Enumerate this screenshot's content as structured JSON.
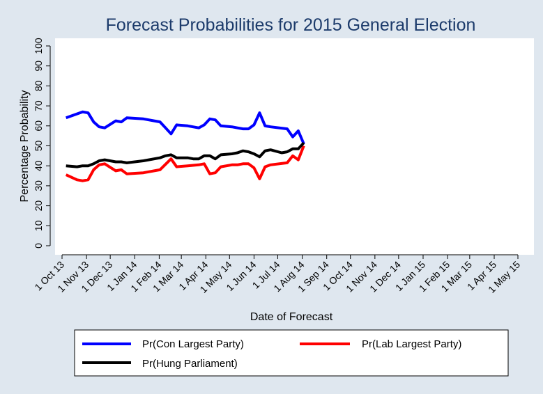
{
  "chart_data": {
    "type": "line",
    "title": "Forecast Probabilities for 2015 General Election",
    "xlabel": "Date of Forecast",
    "ylabel": "Percentage Probability",
    "ylim": [
      0,
      100
    ],
    "yticks": [
      0,
      10,
      20,
      30,
      40,
      50,
      60,
      70,
      80,
      90,
      100
    ],
    "xlim": [
      "2013-10-01",
      "2015-05-01"
    ],
    "xticks": [
      {
        "date": "2013-10-01",
        "label": "1 Oct 13"
      },
      {
        "date": "2013-11-01",
        "label": "1 Nov 13"
      },
      {
        "date": "2013-12-01",
        "label": "1 Dec 13"
      },
      {
        "date": "2014-01-01",
        "label": "1 Jan 14"
      },
      {
        "date": "2014-02-01",
        "label": "1 Feb 14"
      },
      {
        "date": "2014-03-01",
        "label": "1 Mar 14"
      },
      {
        "date": "2014-04-01",
        "label": "1 Apr 14"
      },
      {
        "date": "2014-05-01",
        "label": "1 May 14"
      },
      {
        "date": "2014-06-01",
        "label": "1 Jun 14"
      },
      {
        "date": "2014-07-01",
        "label": "1 Jul 14"
      },
      {
        "date": "2014-08-01",
        "label": "1 Aug 14"
      },
      {
        "date": "2014-09-01",
        "label": "1 Sep 14"
      },
      {
        "date": "2014-10-01",
        "label": "1 Oct 14"
      },
      {
        "date": "2014-11-01",
        "label": "1 Nov 14"
      },
      {
        "date": "2014-12-01",
        "label": "1 Dec 14"
      },
      {
        "date": "2015-01-01",
        "label": "1 Jan 15"
      },
      {
        "date": "2015-02-01",
        "label": "1 Feb 15"
      },
      {
        "date": "2015-03-01",
        "label": "1 Mar 15"
      },
      {
        "date": "2015-04-01",
        "label": "1 Apr 15"
      },
      {
        "date": "2015-05-01",
        "label": "1 May 15"
      }
    ],
    "grid": false,
    "legend_position": "bottom",
    "series": [
      {
        "name": "Pr(Con Largest Party)",
        "color": "#0000ff",
        "points": [
          [
            "2013-10-06",
            64
          ],
          [
            "2013-10-27",
            67
          ],
          [
            "2013-11-03",
            66.5
          ],
          [
            "2013-11-10",
            62
          ],
          [
            "2013-11-17",
            59.5
          ],
          [
            "2013-11-24",
            59
          ],
          [
            "2013-12-08",
            62.5
          ],
          [
            "2013-12-15",
            62
          ],
          [
            "2013-12-22",
            64
          ],
          [
            "2014-01-12",
            63.5
          ],
          [
            "2014-02-02",
            62
          ],
          [
            "2014-02-09",
            59
          ],
          [
            "2014-02-16",
            56
          ],
          [
            "2014-02-23",
            60.5
          ],
          [
            "2014-03-09",
            60
          ],
          [
            "2014-03-23",
            59
          ],
          [
            "2014-03-30",
            60.5
          ],
          [
            "2014-04-06",
            63.5
          ],
          [
            "2014-04-13",
            63
          ],
          [
            "2014-04-20",
            60
          ],
          [
            "2014-05-04",
            59.5
          ],
          [
            "2014-05-11",
            59
          ],
          [
            "2014-05-18",
            58.5
          ],
          [
            "2014-05-25",
            58.5
          ],
          [
            "2014-06-01",
            60.5
          ],
          [
            "2014-06-08",
            66.5
          ],
          [
            "2014-06-15",
            60
          ],
          [
            "2014-06-22",
            59.5
          ],
          [
            "2014-07-13",
            58.5
          ],
          [
            "2014-07-20",
            54.5
          ],
          [
            "2014-07-27",
            57.5
          ],
          [
            "2014-08-03",
            51
          ]
        ]
      },
      {
        "name": "Pr(Lab Largest Party)",
        "color": "#ff0000",
        "points": [
          [
            "2013-10-06",
            35.5
          ],
          [
            "2013-10-20",
            33
          ],
          [
            "2013-10-27",
            32.5
          ],
          [
            "2013-11-03",
            33
          ],
          [
            "2013-11-10",
            38
          ],
          [
            "2013-11-17",
            40.5
          ],
          [
            "2013-11-24",
            41
          ],
          [
            "2013-12-08",
            37.5
          ],
          [
            "2013-12-15",
            38
          ],
          [
            "2013-12-22",
            36
          ],
          [
            "2014-01-12",
            36.5
          ],
          [
            "2014-02-02",
            38
          ],
          [
            "2014-02-16",
            43.5
          ],
          [
            "2014-02-23",
            39.5
          ],
          [
            "2014-03-09",
            40
          ],
          [
            "2014-03-23",
            40.5
          ],
          [
            "2014-03-30",
            41
          ],
          [
            "2014-04-06",
            36
          ],
          [
            "2014-04-13",
            36.5
          ],
          [
            "2014-04-20",
            39.5
          ],
          [
            "2014-05-04",
            40.5
          ],
          [
            "2014-05-11",
            40.5
          ],
          [
            "2014-05-18",
            41
          ],
          [
            "2014-05-25",
            41
          ],
          [
            "2014-06-01",
            39
          ],
          [
            "2014-06-08",
            33.5
          ],
          [
            "2014-06-15",
            39.5
          ],
          [
            "2014-06-22",
            40.5
          ],
          [
            "2014-07-13",
            41.5
          ],
          [
            "2014-07-20",
            45
          ],
          [
            "2014-07-27",
            43
          ],
          [
            "2014-08-03",
            50
          ]
        ]
      },
      {
        "name": "Pr(Hung Parliament)",
        "color": "#000000",
        "points": [
          [
            "2013-10-06",
            40
          ],
          [
            "2013-10-20",
            39.5
          ],
          [
            "2013-10-27",
            40
          ],
          [
            "2013-11-03",
            40
          ],
          [
            "2013-11-10",
            41
          ],
          [
            "2013-11-17",
            42.5
          ],
          [
            "2013-11-24",
            43
          ],
          [
            "2013-12-08",
            42
          ],
          [
            "2013-12-15",
            42
          ],
          [
            "2013-12-22",
            41.5
          ],
          [
            "2014-01-12",
            42.5
          ],
          [
            "2014-02-02",
            44
          ],
          [
            "2014-02-09",
            45
          ],
          [
            "2014-02-16",
            45.5
          ],
          [
            "2014-02-23",
            44
          ],
          [
            "2014-03-09",
            44
          ],
          [
            "2014-03-16",
            43.5
          ],
          [
            "2014-03-23",
            43.5
          ],
          [
            "2014-03-30",
            45
          ],
          [
            "2014-04-06",
            45
          ],
          [
            "2014-04-13",
            43.5
          ],
          [
            "2014-04-20",
            45.5
          ],
          [
            "2014-05-04",
            46
          ],
          [
            "2014-05-11",
            46.5
          ],
          [
            "2014-05-18",
            47.5
          ],
          [
            "2014-05-25",
            47
          ],
          [
            "2014-06-01",
            46
          ],
          [
            "2014-06-08",
            44.5
          ],
          [
            "2014-06-15",
            47.5
          ],
          [
            "2014-06-22",
            48
          ],
          [
            "2014-07-06",
            46.5
          ],
          [
            "2014-07-13",
            47
          ],
          [
            "2014-07-20",
            48.5
          ],
          [
            "2014-07-27",
            48.5
          ],
          [
            "2014-08-03",
            51.5
          ]
        ]
      }
    ]
  }
}
